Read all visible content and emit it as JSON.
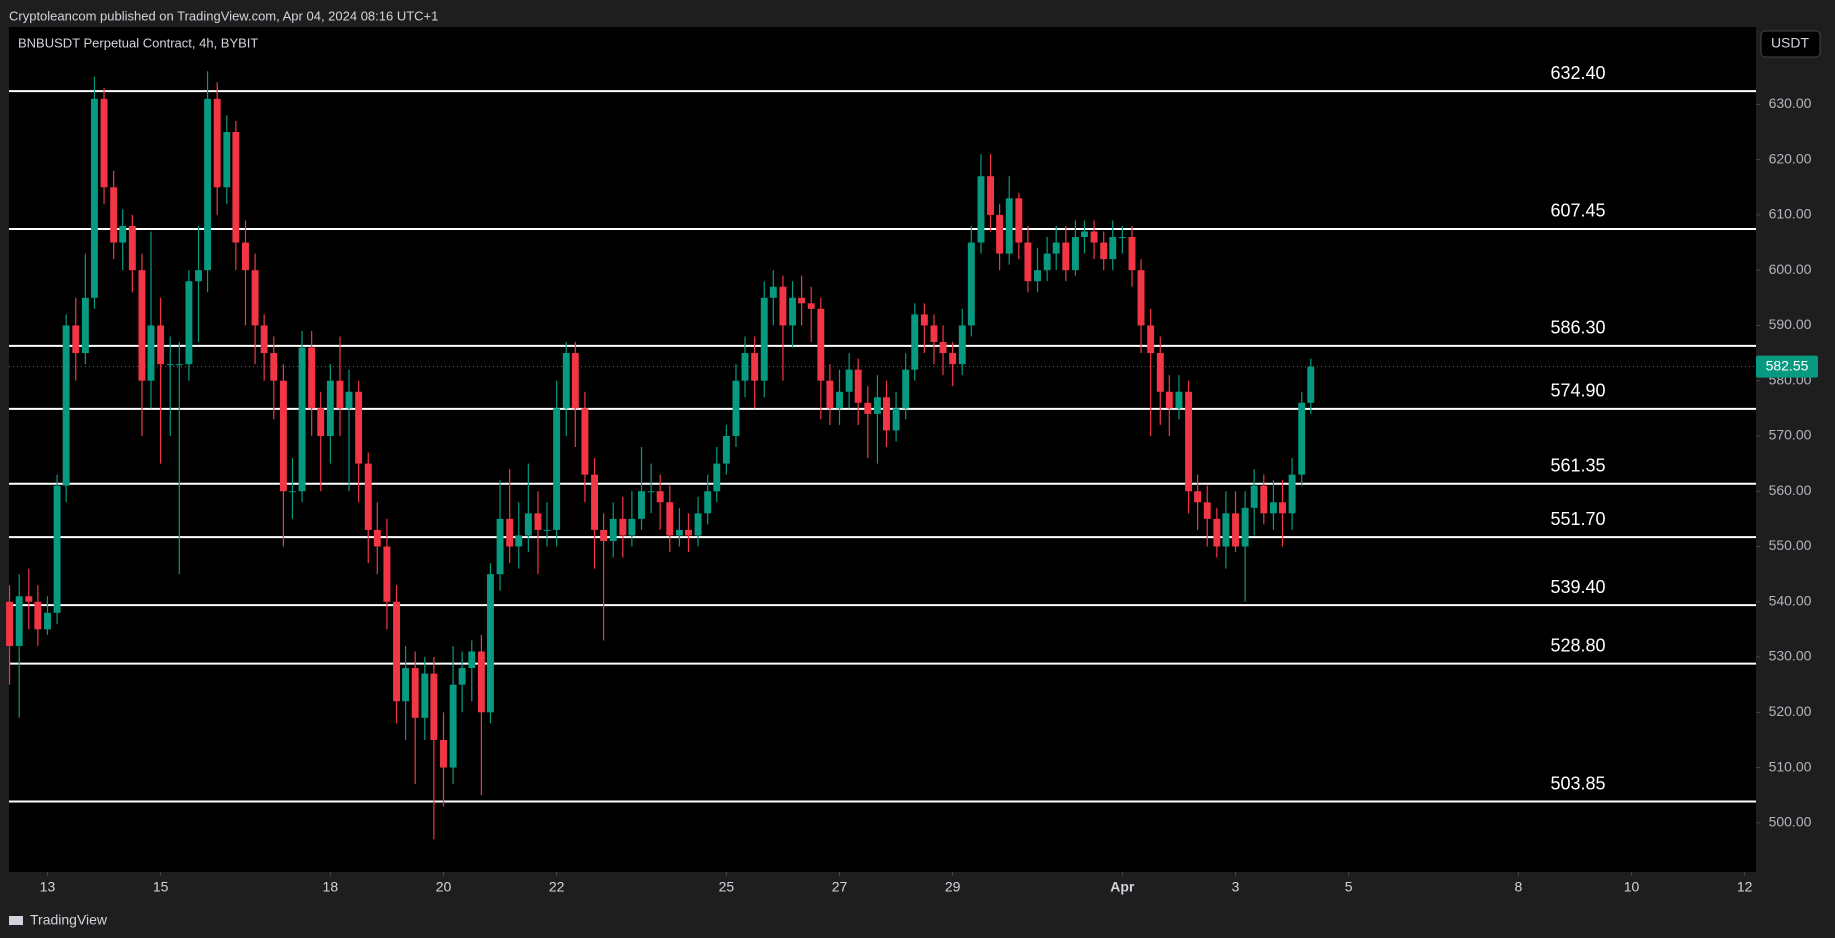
{
  "header": {
    "publisher": "Cryptoleancom published on TradingView.com, Apr 04, 2024 08:16 UTC+1"
  },
  "footer": {
    "brand": "TradingView"
  },
  "chart_data": {
    "type": "candlestick",
    "title": "BNBUSDT Perpetual Contract, 4h, BYBIT",
    "currency": "USDT",
    "up_color": "#089981",
    "down_color": "#f23645",
    "level_color": "#ffffff",
    "x": [
      12.33,
      12.5,
      12.67,
      12.83,
      13,
      13.17,
      13.33,
      13.5,
      13.67,
      13.83,
      14,
      14.17,
      14.33,
      14.5,
      14.67,
      14.83,
      15,
      15.17,
      15.33,
      15.5,
      15.67,
      15.83,
      16,
      16.17,
      16.33,
      16.5,
      16.67,
      16.83,
      17,
      17.17,
      17.33,
      17.5,
      17.67,
      17.83,
      18,
      18.17,
      18.33,
      18.5,
      18.67,
      18.83,
      19,
      19.17,
      19.33,
      19.5,
      19.67,
      19.83,
      20,
      20.17,
      20.33,
      20.5,
      20.67,
      20.83,
      21,
      21.17,
      21.33,
      21.5,
      21.67,
      21.83,
      22,
      22.17,
      22.33,
      22.5,
      22.67,
      22.83,
      23,
      23.17,
      23.33,
      23.5,
      23.67,
      23.83,
      24,
      24.17,
      24.33,
      24.5,
      24.67,
      24.83,
      25,
      25.17,
      25.33,
      25.5,
      25.67,
      25.83,
      26,
      26.17,
      26.33,
      26.5,
      26.67,
      26.83,
      27,
      27.17,
      27.33,
      27.5,
      27.67,
      27.83,
      28,
      28.17,
      28.33,
      28.5,
      28.67,
      28.83,
      29,
      29.17,
      29.33,
      29.5,
      29.67,
      29.83,
      30,
      30.17,
      30.33,
      30.5,
      30.67,
      30.83,
      31,
      31.17,
      31.33,
      31.5,
      31.67,
      31.83,
      32,
      32.17,
      32.33,
      32.5,
      32.67,
      32.83,
      33,
      33.17,
      33.33,
      33.5,
      33.67,
      33.83,
      34,
      34.17,
      34.33,
      34.5,
      34.67,
      34.83,
      35,
      35.17,
      35.33
    ],
    "open": [
      540,
      532,
      541,
      540,
      535,
      538,
      561,
      590,
      585,
      595,
      631,
      615,
      605,
      608,
      600,
      580,
      590,
      583,
      583,
      583,
      598,
      600,
      631,
      615,
      625,
      605,
      600,
      590,
      585,
      580,
      560,
      560,
      586,
      575,
      570,
      580,
      575,
      578,
      565,
      553,
      550,
      540,
      522,
      528,
      519,
      527,
      515,
      510,
      525,
      528,
      531,
      520,
      545,
      555,
      550,
      552,
      556,
      553,
      553,
      575,
      585,
      575,
      563,
      553,
      551,
      555,
      552,
      555,
      560,
      560,
      558,
      552,
      553,
      552,
      556,
      560,
      565,
      570,
      580,
      585,
      580,
      595,
      597,
      590,
      595,
      594,
      593,
      580,
      575,
      578,
      582,
      576,
      574,
      577,
      571,
      575,
      582,
      592,
      590,
      587,
      585,
      583,
      590,
      605,
      617,
      610,
      603,
      613,
      605,
      598,
      600,
      603,
      605,
      600,
      606,
      607,
      605,
      602,
      606,
      606,
      600,
      590,
      585,
      578,
      575,
      578,
      560,
      558,
      555,
      550,
      556,
      550,
      557,
      561,
      556,
      558,
      556,
      563,
      576
    ],
    "high": [
      543,
      545,
      546,
      543,
      541,
      563,
      592,
      595,
      603,
      635,
      633,
      618,
      611,
      610,
      603,
      607,
      595,
      588,
      587,
      600,
      608,
      636,
      634,
      628,
      627,
      609,
      603,
      592,
      588,
      583,
      566,
      589,
      589,
      578,
      583,
      588,
      582,
      580,
      567,
      558,
      555,
      543,
      532,
      531,
      530,
      530,
      520,
      532,
      531,
      533,
      534,
      547,
      562,
      564,
      558,
      565,
      560,
      558,
      580,
      587,
      587,
      578,
      566,
      556,
      558,
      559,
      560,
      568,
      565,
      563,
      561,
      557,
      556,
      559,
      563,
      568,
      572,
      583,
      588,
      588,
      598,
      600,
      599,
      598,
      599,
      597,
      595,
      583,
      582,
      585,
      584,
      579,
      581,
      580,
      578,
      585,
      594,
      594,
      592,
      590,
      587,
      593,
      608,
      621,
      621,
      612,
      617,
      614,
      608,
      604,
      606,
      608,
      608,
      609,
      609,
      609,
      607,
      609,
      608,
      608,
      602,
      593,
      588,
      581,
      581,
      580,
      563,
      561,
      557,
      560,
      560,
      560,
      564,
      563,
      562,
      562,
      566,
      578,
      584
    ],
    "low": [
      525,
      519,
      535,
      532,
      534,
      536,
      558,
      580,
      583,
      593,
      612,
      602,
      600,
      596,
      570,
      575,
      565,
      570,
      545,
      580,
      587,
      596,
      610,
      612,
      600,
      590,
      583,
      580,
      573,
      550,
      555,
      558,
      570,
      560,
      565,
      570,
      560,
      558,
      547,
      545,
      535,
      518,
      515,
      507,
      515,
      497,
      503,
      507,
      520,
      522,
      505,
      518,
      542,
      547,
      546,
      549,
      545,
      550,
      550,
      570,
      568,
      558,
      546,
      533,
      548,
      548,
      550,
      553,
      556,
      553,
      549,
      550,
      549,
      550,
      554,
      558,
      563,
      568,
      577,
      575,
      577,
      590,
      580,
      586,
      590,
      587,
      573,
      572,
      572,
      575,
      572,
      566,
      565,
      568,
      569,
      573,
      580,
      585,
      583,
      581,
      579,
      581,
      588,
      603,
      607,
      600,
      601,
      602,
      596,
      596,
      598,
      600,
      598,
      599,
      603,
      602,
      600,
      600,
      603,
      597,
      585,
      570,
      572,
      570,
      573,
      556,
      553,
      550,
      548,
      546,
      549,
      540,
      552,
      554,
      553,
      550,
      553,
      561,
      574
    ],
    "close": [
      532,
      541,
      540,
      535,
      538,
      561,
      590,
      585,
      595,
      631,
      615,
      605,
      608,
      600,
      580,
      590,
      583,
      583,
      583,
      598,
      600,
      631,
      615,
      625,
      605,
      600,
      590,
      585,
      580,
      560,
      560,
      586,
      575,
      570,
      580,
      575,
      578,
      565,
      553,
      550,
      540,
      522,
      528,
      519,
      527,
      515,
      510,
      525,
      528,
      531,
      520,
      545,
      555,
      550,
      552,
      556,
      553,
      553,
      575,
      585,
      575,
      563,
      553,
      551,
      555,
      552,
      555,
      560,
      560,
      558,
      552,
      553,
      552,
      556,
      560,
      565,
      570,
      580,
      585,
      580,
      595,
      597,
      590,
      595,
      594,
      593,
      580,
      575,
      578,
      582,
      576,
      574,
      577,
      571,
      575,
      582,
      592,
      590,
      587,
      585,
      583,
      590,
      605,
      617,
      610,
      603,
      613,
      605,
      598,
      600,
      603,
      605,
      600,
      606,
      607,
      605,
      602,
      606,
      606,
      600,
      590,
      585,
      578,
      575,
      578,
      560,
      558,
      555,
      550,
      556,
      550,
      557,
      561,
      556,
      558,
      556,
      563,
      576,
      582.55
    ],
    "xlim": [
      12.32,
      43.2
    ],
    "xticks": [
      13,
      15,
      18,
      20,
      22,
      25,
      27,
      29,
      {
        "value": 32,
        "label": "Apr"
      },
      {
        "value": 34,
        "label": "3"
      },
      {
        "value": 36,
        "label": "5"
      },
      {
        "value": 39,
        "label": "8"
      },
      {
        "value": 41,
        "label": "10"
      },
      {
        "value": 43,
        "label": "12"
      }
    ],
    "ylim": [
      491.1,
      644
    ],
    "yticks": [
      {
        "value": 500,
        "label": "500.00"
      },
      {
        "value": 510,
        "label": "510.00"
      },
      {
        "value": 520,
        "label": "520.00"
      },
      {
        "value": 530,
        "label": "530.00"
      },
      {
        "value": 540,
        "label": "540.00"
      },
      {
        "value": 550,
        "label": "550.00"
      },
      {
        "value": 560,
        "label": "560.00"
      },
      {
        "value": 570,
        "label": "570.00"
      },
      {
        "value": 580,
        "label": "580.00"
      },
      {
        "value": 590,
        "label": "590.00"
      },
      {
        "value": 600,
        "label": "600.00"
      },
      {
        "value": 610,
        "label": "610.00"
      },
      {
        "value": 620,
        "label": "620.00"
      },
      {
        "value": 630,
        "label": "630.00"
      }
    ],
    "levels": [
      {
        "value": 632.4,
        "label": "632.40"
      },
      {
        "value": 607.45,
        "label": "607.45"
      },
      {
        "value": 586.3,
        "label": "586.30"
      },
      {
        "value": 574.9,
        "label": "574.90"
      },
      {
        "value": 561.35,
        "label": "561.35"
      },
      {
        "value": 551.7,
        "label": "551.70"
      },
      {
        "value": 539.4,
        "label": "539.40"
      },
      {
        "value": 528.8,
        "label": "528.80"
      },
      {
        "value": 503.85,
        "label": "503.85"
      }
    ]
  }
}
